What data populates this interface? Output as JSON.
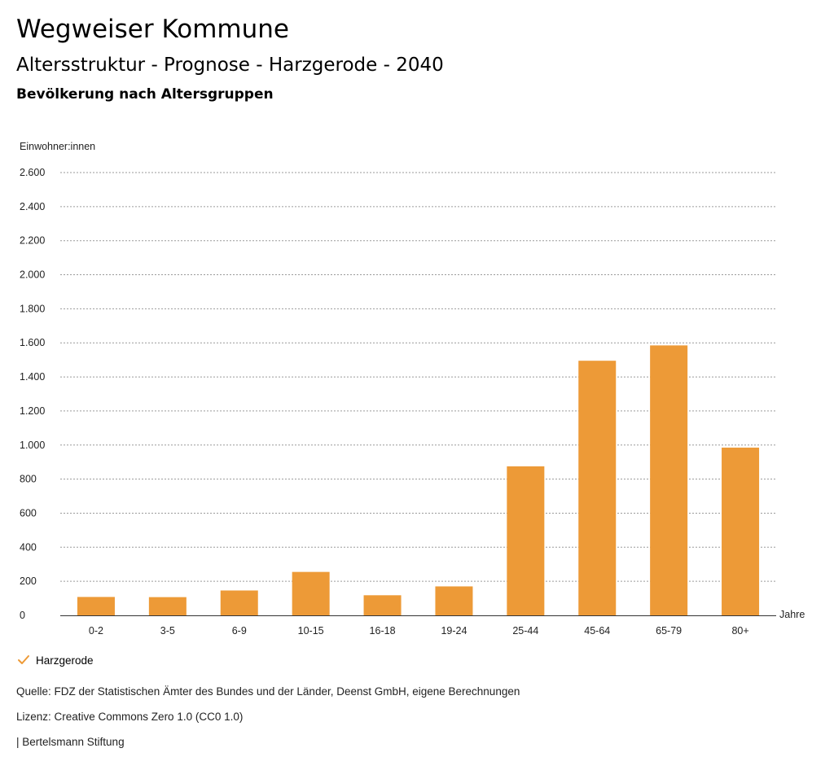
{
  "header": {
    "title": "Wegweiser Kommune",
    "subtitle": "Altersstruktur - Prognose - Harzgerode - 2040",
    "chart_heading": "Bevölkerung nach Altersgruppen"
  },
  "legend": {
    "series_name": "Harzgerode",
    "icon": "check-icon"
  },
  "footer": {
    "source": "Quelle: FDZ der Statistischen Ämter des Bundes und der Länder, Deenst GmbH, eigene Berechnungen",
    "license": "Lizenz: Creative Commons Zero 1.0 (CC0 1.0)",
    "publisher": "| Bertelsmann Stiftung"
  },
  "colors": {
    "bar": "#ED9A37",
    "grid": "#9a9a9a",
    "axis": "#333333"
  },
  "chart_data": {
    "type": "bar",
    "ylabel": "Einwohner:innen",
    "xlabel": "Jahre",
    "ylim": [
      0,
      2600
    ],
    "yticks": [
      0,
      200,
      400,
      600,
      800,
      1000,
      1200,
      1400,
      1600,
      1800,
      2000,
      2200,
      2400,
      2600
    ],
    "ytick_labels": [
      "0",
      "200",
      "400",
      "600",
      "800",
      "1.000",
      "1.200",
      "1.400",
      "1.600",
      "1.800",
      "2.000",
      "2.200",
      "2.400",
      "2.600"
    ],
    "grid": true,
    "categories": [
      "0-2",
      "3-5",
      "6-9",
      "10-15",
      "16-18",
      "19-24",
      "25-44",
      "45-64",
      "65-79",
      "80+"
    ],
    "series": [
      {
        "name": "Harzgerode",
        "values": [
          108,
          107,
          146,
          255,
          118,
          170,
          875,
          1495,
          1585,
          985
        ]
      }
    ]
  }
}
